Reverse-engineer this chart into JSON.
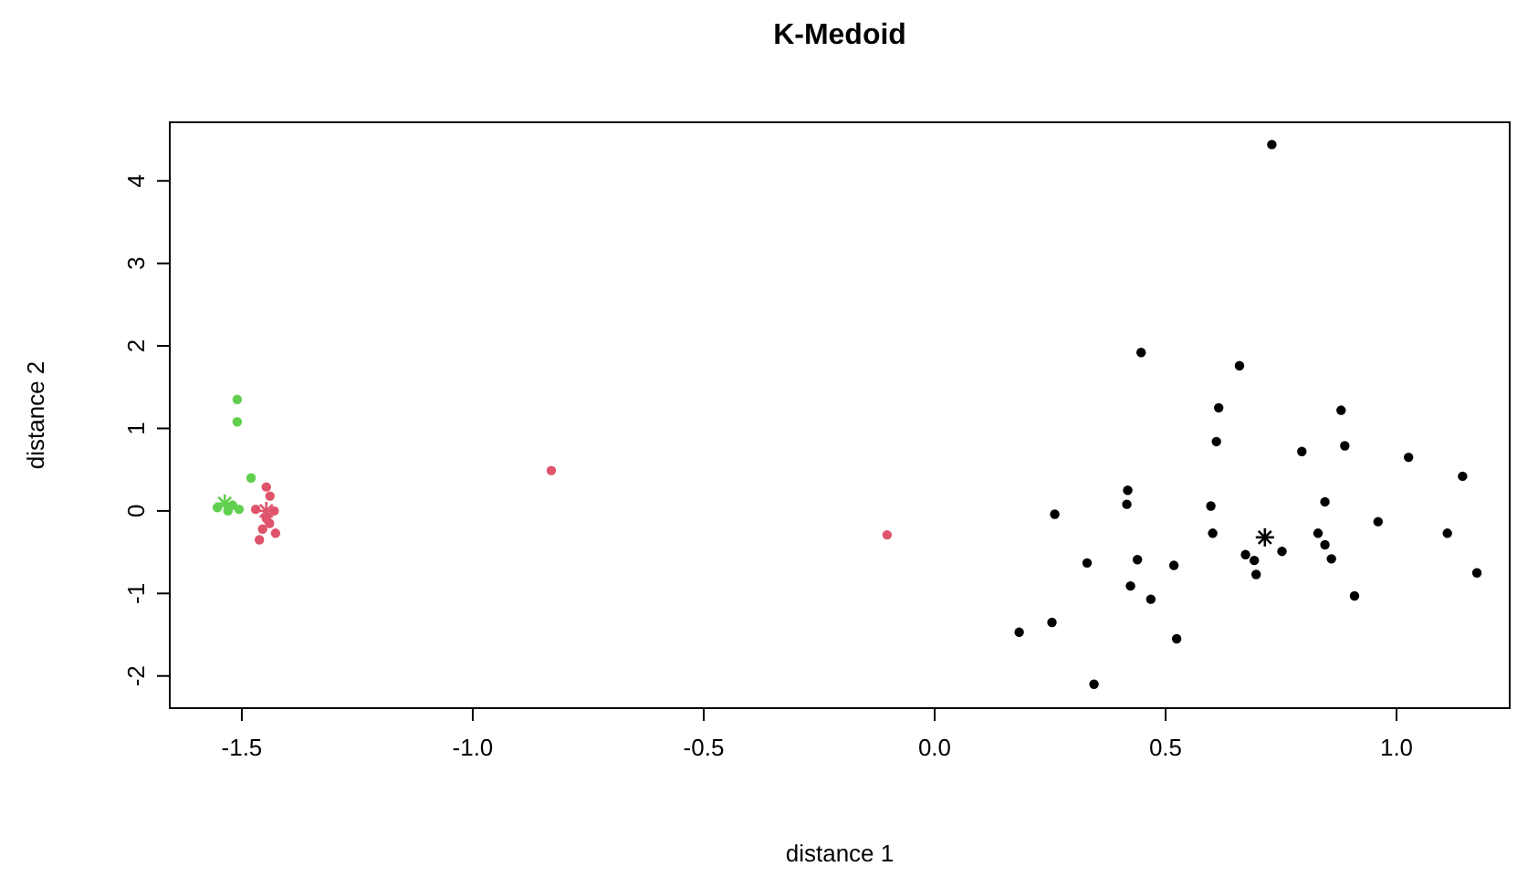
{
  "chart_data": {
    "type": "scatter",
    "title": "K-Medoid",
    "xlabel": "distance 1",
    "ylabel": "distance 2",
    "xlim": [
      -1.656,
      1.245
    ],
    "ylim": [
      -2.39,
      4.71
    ],
    "xticks": [
      -1.5,
      {
        "value": -1,
        "label": "-1.0"
      },
      -0.5,
      {
        "value": 0,
        "label": "0.0"
      },
      0.5,
      {
        "value": 1,
        "label": "1.0"
      }
    ],
    "yticks": [
      -2,
      -1,
      0,
      1,
      2,
      3,
      4
    ],
    "grid": false,
    "marker": "circle",
    "series": [
      {
        "color": "#000000",
        "x": [
          0.73,
          0.447,
          0.66,
          0.615,
          0.88,
          0.61,
          0.888,
          0.795,
          1.026,
          1.143,
          0.418,
          0.416,
          0.26,
          0.598,
          0.845,
          0.96,
          0.602,
          0.83,
          1.11,
          0.752,
          0.673,
          0.692,
          0.845,
          0.859,
          0.696,
          0.33,
          0.439,
          0.518,
          1.174,
          0.424,
          0.468,
          0.909,
          0.254,
          0.183,
          0.524,
          0.345
        ],
        "values": [
          4.44,
          1.92,
          1.76,
          1.25,
          1.22,
          0.84,
          0.79,
          0.72,
          0.65,
          0.42,
          0.25,
          0.08,
          -0.04,
          0.06,
          0.11,
          -0.13,
          -0.27,
          -0.27,
          -0.27,
          -0.49,
          -0.53,
          -0.6,
          -0.41,
          -0.58,
          -0.77,
          -0.63,
          -0.59,
          -0.66,
          -0.75,
          -0.91,
          -1.07,
          -1.03,
          -1.35,
          -1.47,
          -1.55,
          -2.1
        ]
      },
      {
        "color": "#df536b",
        "x": [
          -0.83,
          -0.103,
          -1.447,
          -1.439,
          -1.47,
          -1.43,
          -1.44,
          -1.455,
          -1.427,
          -1.462,
          -1.447
        ],
        "values": [
          0.49,
          -0.29,
          0.29,
          0.18,
          0.02,
          0.0,
          -0.15,
          -0.22,
          -0.27,
          -0.35,
          -0.09
        ]
      },
      {
        "color": "#61d04f",
        "x": [
          -1.51,
          -1.51,
          -1.48,
          -1.52,
          -1.506,
          -1.553,
          -1.53
        ],
        "values": [
          1.35,
          1.08,
          0.4,
          0.07,
          0.02,
          0.04,
          0.0
        ]
      },
      {
        "marker": "cross",
        "colors": [
          "#000000",
          "#df536b",
          "#61d04f"
        ],
        "x": [
          0.715,
          -1.447,
          -1.537
        ],
        "values": [
          -0.32,
          0.0,
          0.09
        ]
      }
    ]
  }
}
